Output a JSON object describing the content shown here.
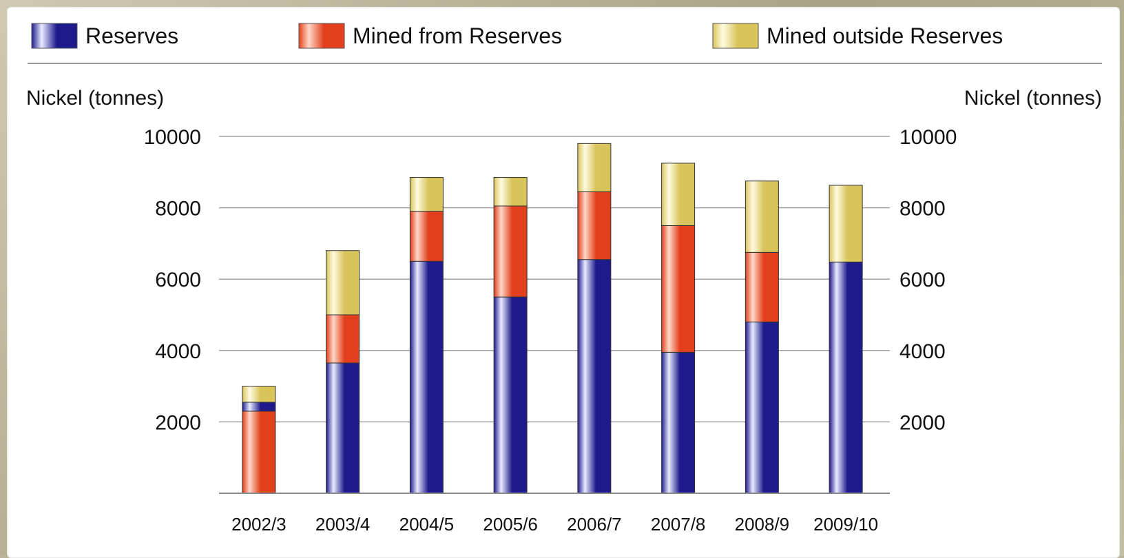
{
  "chart_data": {
    "type": "bar",
    "stacked": true,
    "categories": [
      "2002/3",
      "2003/4",
      "2004/5",
      "2005/6",
      "2006/7",
      "2007/8",
      "2008/9",
      "2009/10"
    ],
    "series": [
      {
        "name": "Reserves",
        "color": "#1f1a8c",
        "values": [
          0,
          3650,
          6500,
          5500,
          6550,
          3950,
          4800,
          6480
        ]
      },
      {
        "name": "Mined from Reserves",
        "color": "#e2401c",
        "values": [
          2300,
          1350,
          1400,
          2550,
          1900,
          3550,
          1950,
          0
        ]
      },
      {
        "name": "Mined outside Reserves",
        "color": "#d8c45a",
        "values": [
          450,
          1800,
          950,
          800,
          1350,
          1750,
          2000,
          2150
        ]
      }
    ],
    "special_segments": [
      {
        "category": "2002/3",
        "series": "Reserves",
        "from": 2300,
        "to": 2550
      }
    ],
    "ylabel_left": "Nickel (tonnes)",
    "ylabel_right": "Nickel (tonnes)",
    "ylim": [
      0,
      10000
    ],
    "yticks": [
      2000,
      4000,
      6000,
      8000,
      10000
    ],
    "grid": true,
    "legend_position": "top"
  }
}
